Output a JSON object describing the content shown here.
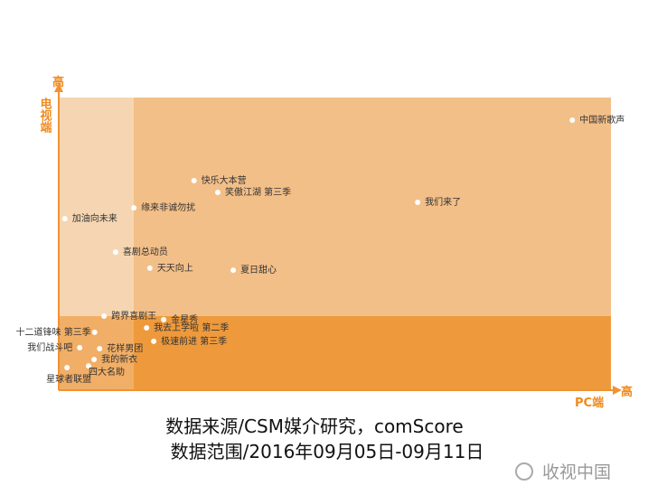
{
  "chart_data": {
    "type": "scatter",
    "x_label": "PC端",
    "y_label": "电视端",
    "x_high_label": "高",
    "y_high_label": "高",
    "xlim": [
      0,
      100
    ],
    "ylim": [
      0,
      100
    ],
    "color": "#ffffff",
    "labels": [
      "中国新歌声",
      "快乐大本营",
      "笑傲江湖 第三季",
      "我们来了",
      "缘来非诚勿扰",
      "加油向未来",
      "喜剧总动员",
      "天天向上",
      "夏日甜心",
      "跨界喜剧王",
      "金星秀",
      "我去上学啦 第二季",
      "极速前进 第三季",
      "十二道锋味 第三季",
      "我们战斗吧",
      "花样男团",
      "我的新衣",
      "四大名助",
      "星球者联盟"
    ],
    "x": [
      93.0,
      24.5,
      28.8,
      65.0,
      13.6,
      1.1,
      10.3,
      16.5,
      31.6,
      8.2,
      19.0,
      15.9,
      17.2,
      6.5,
      3.8,
      7.4,
      6.4,
      5.4,
      1.5
    ],
    "values": [
      92.3,
      71.6,
      67.6,
      64.2,
      62.3,
      58.6,
      47.2,
      41.7,
      41.0,
      25.3,
      24.1,
      21.3,
      16.7,
      19.8,
      14.5,
      14.2,
      10.5,
      8.3,
      7.7
    ]
  },
  "footer": {
    "source": "数据来源/CSM媒介研究，comScore",
    "range": "数据范围/2016年09月05日-09月11日",
    "watermark": "收视中国"
  }
}
